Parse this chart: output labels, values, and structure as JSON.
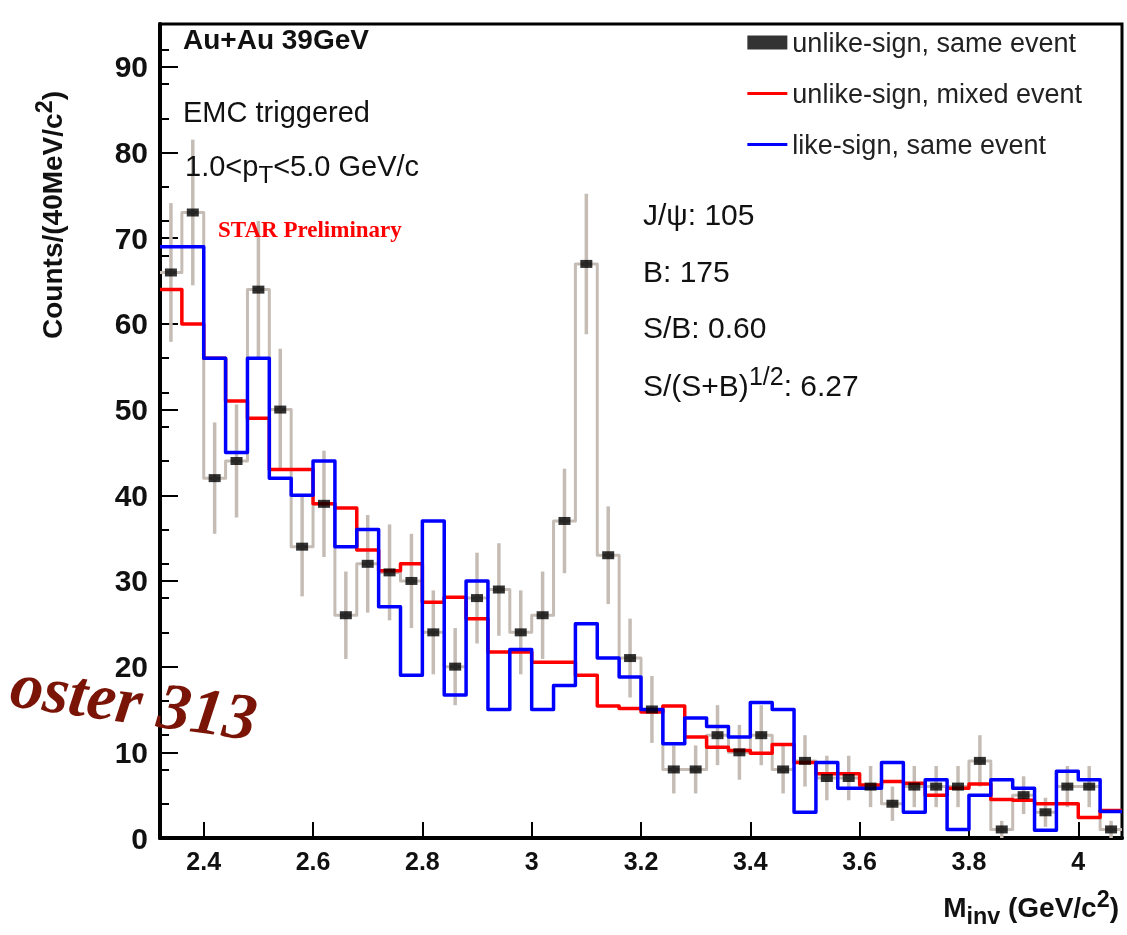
{
  "chart_data": {
    "type": "histogram",
    "xlabel": "M$_{inv}$ (GeV/c$^{2}$)",
    "ylabel": "Counts/(40MeV/c$^{2}$)",
    "annotations": [
      "Au+Au 39GeV",
      "EMC triggered",
      "1.0<p$_{T}$<5.0 GeV/c",
      "STAR Preliminary",
      "J/ψ: 105",
      "B: 175",
      "S/B: 0.60",
      "S/(S+B)$^{1/2}$: 6.27",
      "oster 313"
    ],
    "bins": [
      2.32,
      2.36,
      2.4,
      2.44,
      2.48,
      2.52,
      2.56,
      2.6,
      2.64,
      2.68,
      2.72,
      2.76,
      2.8,
      2.84,
      2.88,
      2.92,
      2.96,
      3.0,
      3.04,
      3.08,
      3.12,
      3.16,
      3.2,
      3.24,
      3.28,
      3.32,
      3.36,
      3.4,
      3.44,
      3.48,
      3.52,
      3.56,
      3.6,
      3.64,
      3.68,
      3.72,
      3.76,
      3.8,
      3.84,
      3.88,
      3.92,
      3.96,
      4.0,
      4.04,
      4.08
    ],
    "series": [
      {
        "type": "histogram",
        "color": "#c5bdb5",
        "values": [
          66,
          73,
          42,
          44,
          64,
          50,
          34,
          39,
          26,
          32,
          31,
          30,
          24,
          20,
          28,
          29,
          24,
          26,
          37,
          67,
          33,
          21,
          15,
          8,
          8,
          12,
          10,
          12,
          8,
          9,
          7,
          7,
          6,
          4,
          6,
          6,
          6,
          9,
          1,
          5,
          3,
          6,
          6,
          1
        ]
      },
      {
        "name": "unlike-sign, same event",
        "type": "scatter",
        "color": "#000000",
        "x": [
          2.34,
          2.38,
          2.42,
          2.46,
          2.5,
          2.54,
          2.58,
          2.62,
          2.66,
          2.7,
          2.74,
          2.78,
          2.82,
          2.86,
          2.9,
          2.94,
          2.98,
          3.02,
          3.06,
          3.1,
          3.14,
          3.18,
          3.22,
          3.26,
          3.3,
          3.34,
          3.38,
          3.42,
          3.46,
          3.5,
          3.54,
          3.58,
          3.62,
          3.66,
          3.7,
          3.74,
          3.78,
          3.82,
          3.86,
          3.9,
          3.94,
          3.98,
          4.02,
          4.06
        ],
        "values": [
          66,
          73,
          42,
          44,
          64,
          50,
          34,
          39,
          26,
          32,
          31,
          30,
          24,
          20,
          28,
          29,
          24,
          26,
          37,
          67,
          33,
          21,
          15,
          8,
          8,
          12,
          10,
          12,
          8,
          9,
          7,
          7,
          6,
          4,
          6,
          6,
          6,
          9,
          1,
          5,
          3,
          6,
          6,
          1
        ],
        "errors": [
          8.1,
          8.5,
          6.5,
          6.6,
          8,
          7.1,
          5.8,
          6.2,
          5.1,
          5.7,
          5.6,
          5.5,
          4.9,
          4.5,
          5.3,
          5.4,
          4.9,
          5.1,
          6.1,
          8.2,
          5.7,
          4.6,
          3.9,
          2.8,
          2.8,
          3.5,
          3.2,
          3.5,
          2.8,
          3,
          2.6,
          2.6,
          2.4,
          2,
          2.4,
          2.4,
          2.4,
          3,
          1,
          2.2,
          1.7,
          2.4,
          2.4,
          1
        ]
      },
      {
        "name": "unlike-sign, mixed event",
        "color": "#ff0000",
        "values": [
          64,
          60,
          56,
          51,
          49,
          43,
          43,
          39,
          38.5,
          33.6,
          31.2,
          32,
          27.5,
          28.1,
          25.6,
          21.7,
          21.7,
          20.5,
          20.5,
          19.0,
          15.4,
          15.1,
          14.7,
          15.4,
          11.8,
          10.6,
          10.2,
          9.9,
          10.9,
          8.8,
          7.5,
          7.5,
          6.2,
          6.6,
          6.4,
          5.0,
          5.8,
          6.3,
          4.5,
          4.4,
          4.0,
          4.0,
          2.4,
          3.2
        ]
      },
      {
        "name": "like-sign, same event",
        "color": "#0000ff",
        "values": [
          69,
          69,
          56,
          45,
          56,
          42,
          40,
          44,
          34,
          36,
          27,
          19,
          37,
          16.7,
          30,
          15,
          22,
          15,
          17.8,
          25,
          21,
          18.8,
          15,
          11,
          14,
          13,
          11.8,
          15.8,
          15,
          3,
          8.8,
          5.8,
          5.8,
          8.8,
          3,
          6.8,
          1,
          5,
          6.8,
          5.8,
          0.9,
          7.8,
          6.8,
          3.1
        ]
      }
    ],
    "marker": "square",
    "xlim": [
      2.32,
      4.08
    ],
    "xticks": [
      2.4,
      2.6,
      2.8,
      3,
      3.2,
      3.4,
      3.6,
      3.8,
      4
    ],
    "ylim": [
      0,
      95
    ],
    "yticks": [
      0,
      10,
      20,
      30,
      40,
      50,
      60,
      70,
      80,
      90
    ],
    "legend": "top right"
  }
}
